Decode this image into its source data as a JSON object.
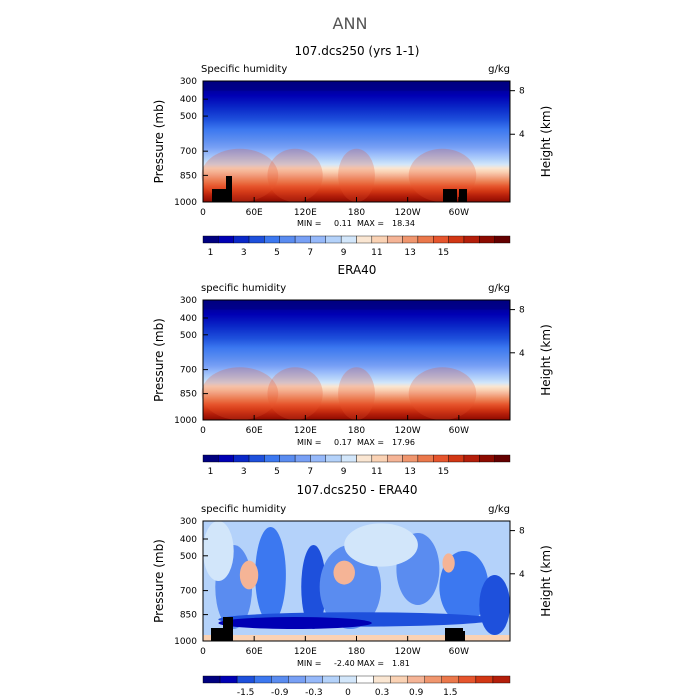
{
  "figure": {
    "title": "ANN"
  },
  "palette_full": [
    "#00007f",
    "#0000b4",
    "#0a28c8",
    "#1e50dc",
    "#3c78f0",
    "#5a8cf0",
    "#78a0f5",
    "#96b9fa",
    "#b4d2fa",
    "#d2e6fa",
    "#fae6d2",
    "#fad2b4",
    "#f5b496",
    "#f0966e",
    "#eb784b",
    "#e6552d",
    "#d23714",
    "#b41e0a",
    "#8c0a00",
    "#640000"
  ],
  "panels": [
    {
      "title": "107.dcs250 (yrs 1-1)",
      "left_label": "Specific humidity",
      "right_label": "g/kg",
      "y_axis_label": "Pressure (mb)",
      "right_axis_label": "Height (km)",
      "y_ticks": [
        "300",
        "400",
        "500",
        "700",
        "850",
        "1000"
      ],
      "right_ticks": [
        "8",
        "4"
      ],
      "x_ticks": [
        "0",
        "60E",
        "120E",
        "180",
        "120W",
        "60W"
      ],
      "min_label": "MIN =",
      "min_value": "0.11",
      "max_label": "MAX =",
      "max_value": "18.34",
      "colorbar_ticks": [
        "1",
        "3",
        "5",
        "7",
        "9",
        "11",
        "13",
        "15"
      ]
    },
    {
      "title": "ERA40",
      "left_label": "specific humidity",
      "right_label": "g/kg",
      "y_axis_label": "Pressure (mb)",
      "right_axis_label": "Height (km)",
      "y_ticks": [
        "300",
        "400",
        "500",
        "700",
        "850",
        "1000"
      ],
      "right_ticks": [
        "8",
        "4"
      ],
      "x_ticks": [
        "0",
        "60E",
        "120E",
        "180",
        "120W",
        "60W"
      ],
      "min_label": "MIN =",
      "min_value": "0.17",
      "max_label": "MAX =",
      "max_value": "17.96",
      "colorbar_ticks": [
        "1",
        "3",
        "5",
        "7",
        "9",
        "11",
        "13",
        "15"
      ]
    },
    {
      "title": "107.dcs250 - ERA40",
      "left_label": "specific humidity",
      "right_label": "g/kg",
      "y_axis_label": "Pressure (mb)",
      "right_axis_label": "Height (km)",
      "y_ticks": [
        "300",
        "400",
        "500",
        "700",
        "850",
        "1000"
      ],
      "right_ticks": [
        "8",
        "4"
      ],
      "x_ticks": [
        "0",
        "60E",
        "120E",
        "180",
        "120W",
        "60W"
      ],
      "min_label": "MIN =",
      "min_value": "-2.40",
      "max_label": "MAX =",
      "max_value": "1.81",
      "colorbar_ticks": [
        "-1.5",
        "-0.9",
        "-0.3",
        "0",
        "0.3",
        "0.9",
        "1.5"
      ]
    }
  ],
  "chart_data": [
    {
      "type": "heatmap",
      "title": "107.dcs250 (yrs 1-1)",
      "xlabel": "",
      "ylabel": "Pressure (mb)",
      "x_range": [
        0,
        360
      ],
      "y_range": [
        300,
        1000
      ],
      "y_scale": "log",
      "y_inverted": true,
      "colorbar_levels": [
        0.2,
        1,
        2,
        3,
        4,
        5,
        6,
        7,
        8,
        9,
        10,
        11,
        12,
        13,
        14,
        15,
        16,
        17,
        18
      ],
      "min": 0.11,
      "max": 18.34,
      "units": "g/kg"
    },
    {
      "type": "heatmap",
      "title": "ERA40",
      "xlabel": "",
      "ylabel": "Pressure (mb)",
      "x_range": [
        0,
        360
      ],
      "y_range": [
        300,
        1000
      ],
      "y_scale": "log",
      "y_inverted": true,
      "colorbar_levels": [
        0.2,
        1,
        2,
        3,
        4,
        5,
        6,
        7,
        8,
        9,
        10,
        11,
        12,
        13,
        14,
        15,
        16,
        17,
        18
      ],
      "min": 0.17,
      "max": 17.96,
      "units": "g/kg"
    },
    {
      "type": "heatmap",
      "title": "107.dcs250 - ERA40",
      "xlabel": "",
      "ylabel": "Pressure (mb)",
      "x_range": [
        0,
        360
      ],
      "y_range": [
        300,
        1000
      ],
      "y_scale": "log",
      "y_inverted": true,
      "colorbar_levels": [
        -1.8,
        -1.5,
        -1.2,
        -0.9,
        -0.6,
        -0.3,
        -0.1,
        0,
        0.1,
        0.3,
        0.6,
        0.9,
        1.2,
        1.5,
        1.8
      ],
      "min": -2.4,
      "max": 1.81,
      "units": "g/kg"
    }
  ]
}
